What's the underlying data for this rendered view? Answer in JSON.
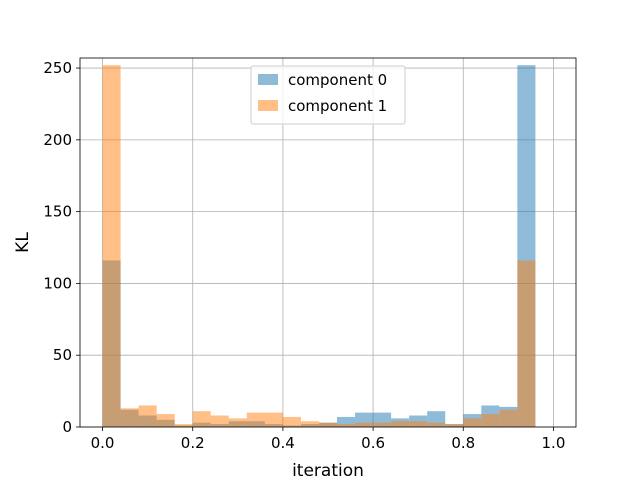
{
  "chart_data": {
    "type": "bar",
    "subtype": "overlapping-histogram",
    "title": "",
    "xlabel": "iteration",
    "ylabel": "KL",
    "xlim": [
      -0.05,
      1.05
    ],
    "ylim": [
      0,
      257
    ],
    "grid": true,
    "legend_position": "top-center",
    "xticks": [
      0.0,
      0.2,
      0.4,
      0.6,
      0.8,
      1.0
    ],
    "xtick_labels": [
      "0.0",
      "0.2",
      "0.4",
      "0.6",
      "0.8",
      "1.0"
    ],
    "yticks": [
      0,
      50,
      100,
      150,
      200,
      250
    ],
    "ytick_labels": [
      "0",
      "50",
      "100",
      "150",
      "200",
      "250"
    ],
    "bins": {
      "start": 0.0,
      "end": 1.0,
      "count": 25
    },
    "series": [
      {
        "name": "component 0",
        "color": "#1f77b4",
        "opacity": 0.5,
        "values": [
          116,
          12,
          8,
          5,
          1,
          3,
          2,
          4,
          4,
          2,
          1,
          2,
          3,
          7,
          10,
          10,
          6,
          8,
          11,
          2,
          9,
          15,
          14,
          252,
          0
        ]
      },
      {
        "name": "component 1",
        "color": "#ff7f0e",
        "opacity": 0.5,
        "values": [
          252,
          13,
          15,
          9,
          2,
          11,
          8,
          6,
          10,
          10,
          7,
          4,
          3,
          2,
          3,
          3,
          4,
          4,
          3,
          2,
          6,
          9,
          12,
          116,
          0
        ]
      }
    ]
  }
}
